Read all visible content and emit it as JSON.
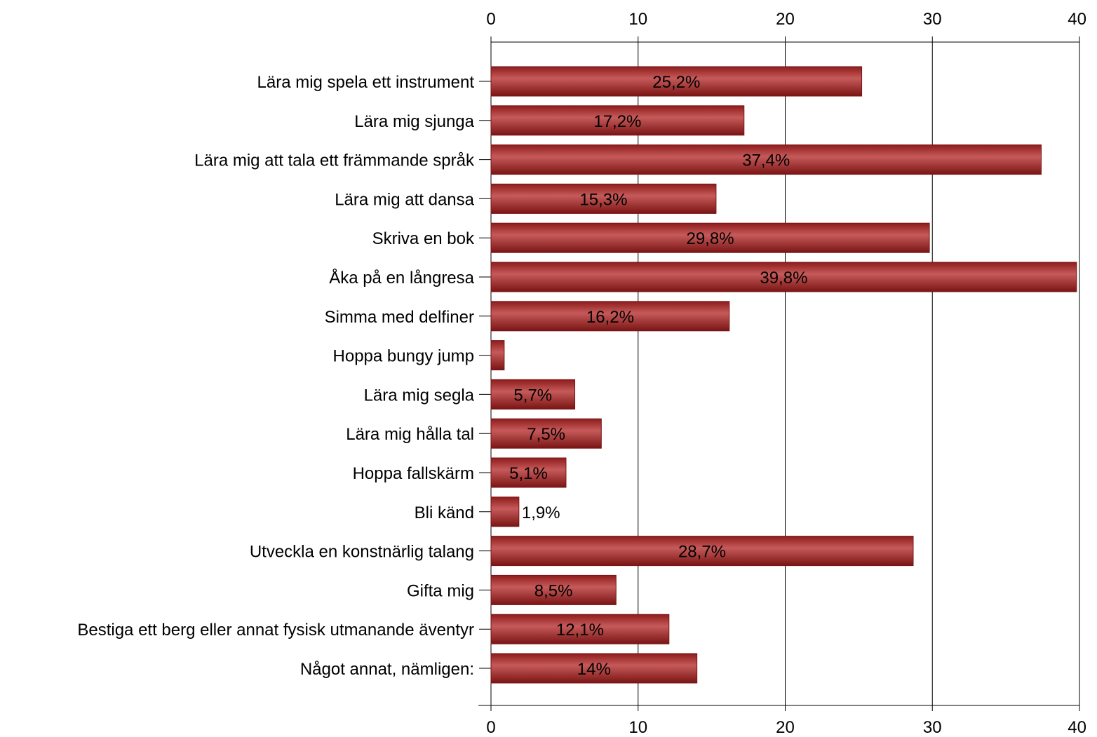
{
  "chart_data": {
    "type": "bar",
    "orientation": "horizontal",
    "categories": [
      "Lära mig spela ett instrument",
      "Lära mig sjunga",
      "Lära mig att tala ett främmande språk",
      "Lära mig att dansa",
      "Skriva en bok",
      "Åka på en långresa",
      "Simma med delfiner",
      "Hoppa bungy jump",
      "Lära mig segla",
      "Lära mig hålla tal",
      "Hoppa fallskärm",
      "Bli känd",
      "Utveckla en konstnärlig talang",
      "Gifta mig",
      "Bestiga ett berg eller annat fysisk utmanande äventyr",
      "Något annat, nämligen:"
    ],
    "values": [
      25.2,
      17.2,
      37.4,
      15.3,
      29.8,
      39.8,
      16.2,
      0.9,
      5.7,
      7.5,
      5.1,
      1.9,
      28.7,
      8.5,
      12.1,
      14
    ],
    "data_labels": [
      "25,2%",
      "17,2%",
      "37,4%",
      "15,3%",
      "29,8%",
      "39,8%",
      "16,2%",
      "",
      "5,7%",
      "7,5%",
      "5,1%",
      "1,9%",
      "28,7%",
      "8,5%",
      "12,1%",
      "14%"
    ],
    "xlim": [
      0,
      40
    ],
    "xticks": [
      0,
      10,
      20,
      30,
      40
    ],
    "xtick_labels": [
      "0",
      "10",
      "20",
      "30",
      "40"
    ],
    "axis_position": "top and bottom",
    "grid": true,
    "title": "",
    "xlabel": "",
    "ylabel": "",
    "colors": {
      "bar": "#A52A2A",
      "bar_dark": "#7A1414",
      "bar_light": "#C65A5A",
      "grid": "#000000"
    }
  }
}
